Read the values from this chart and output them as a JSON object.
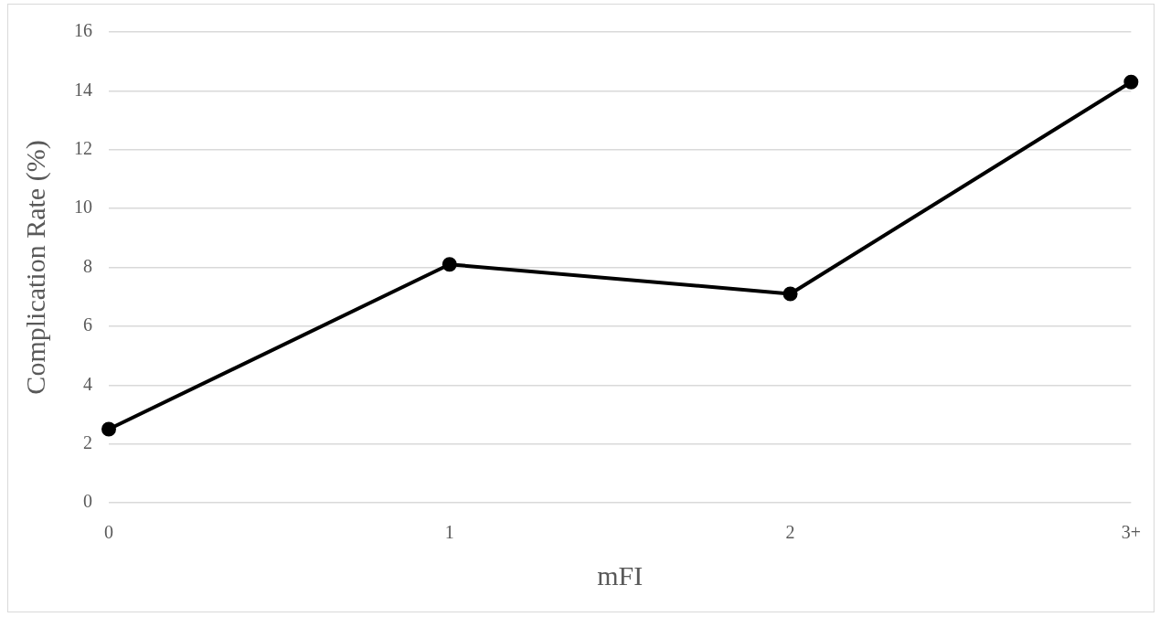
{
  "chart_data": {
    "type": "line",
    "xlabel": "mFI",
    "ylabel": "Complication Rate (%)",
    "categories": [
      "0",
      "1",
      "2",
      "3+"
    ],
    "series": [
      {
        "color": "#000000",
        "values": [
          2.5,
          8.1,
          7.1,
          14.3
        ]
      }
    ],
    "ylim": [
      0,
      16
    ],
    "yticks": [
      0,
      2,
      4,
      6,
      8,
      10,
      12,
      14,
      16
    ],
    "grid": "y",
    "legend": false,
    "marker": "circle",
    "line_style": "solid"
  }
}
